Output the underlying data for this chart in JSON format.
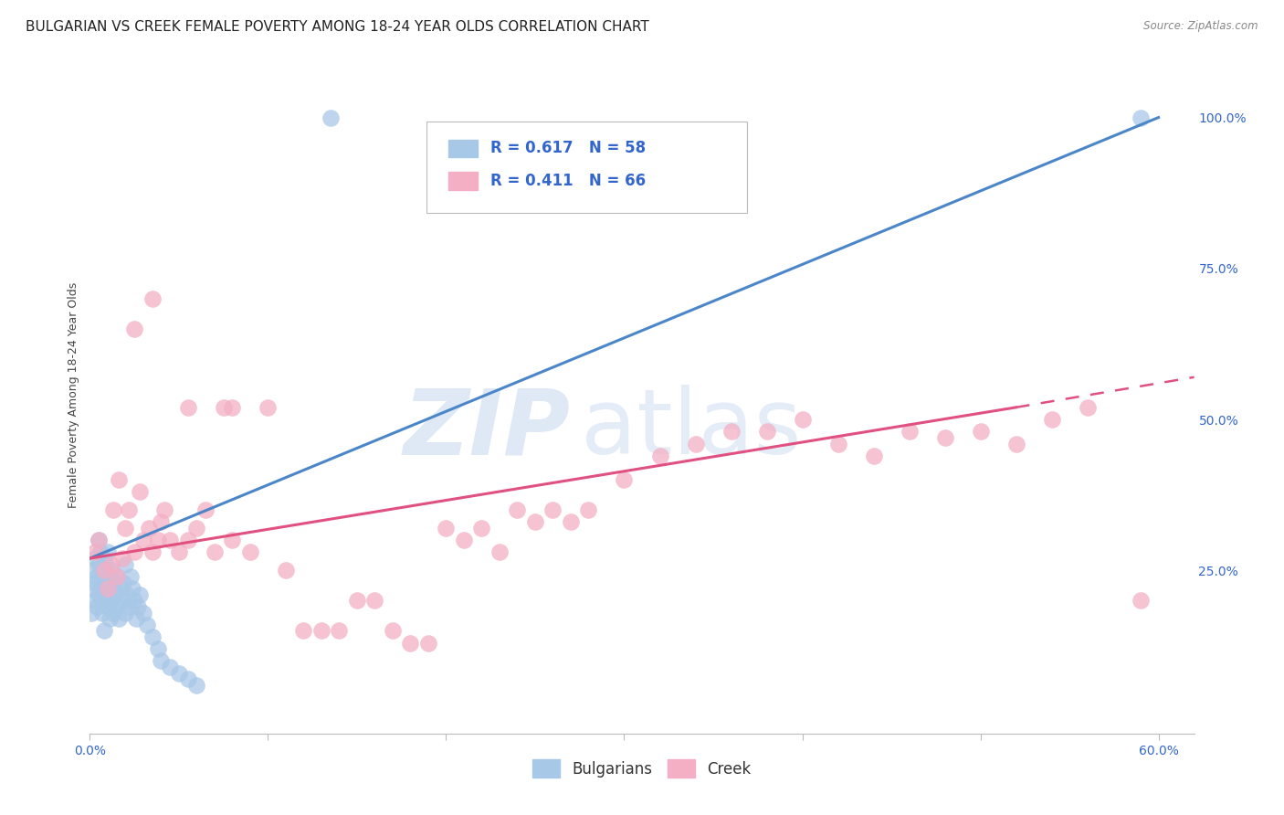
{
  "title": "BULGARIAN VS CREEK FEMALE POVERTY AMONG 18-24 YEAR OLDS CORRELATION CHART",
  "source": "Source: ZipAtlas.com",
  "ylabel": "Female Poverty Among 18-24 Year Olds",
  "xlim": [
    0.0,
    0.62
  ],
  "ylim": [
    -0.02,
    1.1
  ],
  "xticks": [
    0.0,
    0.1,
    0.2,
    0.3,
    0.4,
    0.5,
    0.6
  ],
  "xticklabels": [
    "0.0%",
    "",
    "",
    "",
    "",
    "",
    "60.0%"
  ],
  "yticks_right": [
    0.0,
    0.25,
    0.5,
    0.75,
    1.0
  ],
  "yticklabels_right": [
    "",
    "25.0%",
    "50.0%",
    "75.0%",
    "100.0%"
  ],
  "bulgarian_r": 0.617,
  "bulgarian_n": 58,
  "creek_r": 0.411,
  "creek_n": 66,
  "bulgarian_color": "#a8c8e8",
  "creek_color": "#f4afc4",
  "bulgarian_line_color": "#4a86c8",
  "creek_line_color": "#e05080",
  "watermark_zip": "ZIP",
  "watermark_atlas": "atlas",
  "background_color": "#ffffff",
  "grid_color": "#cccccc",
  "legend_text_color": "#3366cc",
  "title_fontsize": 11,
  "axis_label_fontsize": 9,
  "tick_fontsize": 10,
  "legend_fontsize": 12,
  "bulg_x": [
    0.001,
    0.002,
    0.002,
    0.003,
    0.003,
    0.003,
    0.004,
    0.004,
    0.005,
    0.005,
    0.005,
    0.006,
    0.006,
    0.007,
    0.007,
    0.007,
    0.008,
    0.008,
    0.008,
    0.009,
    0.009,
    0.01,
    0.01,
    0.01,
    0.011,
    0.011,
    0.012,
    0.012,
    0.013,
    0.013,
    0.014,
    0.015,
    0.015,
    0.016,
    0.017,
    0.018,
    0.019,
    0.02,
    0.02,
    0.021,
    0.022,
    0.023,
    0.024,
    0.025,
    0.026,
    0.027,
    0.028,
    0.03,
    0.032,
    0.035,
    0.038,
    0.04,
    0.045,
    0.05,
    0.055,
    0.06,
    0.135,
    0.59
  ],
  "bulg_y": [
    0.18,
    0.22,
    0.25,
    0.2,
    0.23,
    0.27,
    0.19,
    0.24,
    0.21,
    0.26,
    0.3,
    0.22,
    0.28,
    0.2,
    0.25,
    0.18,
    0.23,
    0.27,
    0.15,
    0.21,
    0.26,
    0.19,
    0.24,
    0.28,
    0.22,
    0.17,
    0.25,
    0.2,
    0.23,
    0.18,
    0.21,
    0.19,
    0.24,
    0.17,
    0.22,
    0.2,
    0.23,
    0.18,
    0.26,
    0.21,
    0.19,
    0.24,
    0.22,
    0.2,
    0.17,
    0.19,
    0.21,
    0.18,
    0.16,
    0.14,
    0.12,
    0.1,
    0.09,
    0.08,
    0.07,
    0.06,
    1.0,
    1.0
  ],
  "creek_x": [
    0.003,
    0.005,
    0.008,
    0.01,
    0.012,
    0.013,
    0.015,
    0.016,
    0.018,
    0.02,
    0.022,
    0.025,
    0.028,
    0.03,
    0.033,
    0.035,
    0.038,
    0.04,
    0.042,
    0.045,
    0.05,
    0.055,
    0.06,
    0.065,
    0.07,
    0.075,
    0.08,
    0.09,
    0.1,
    0.11,
    0.12,
    0.13,
    0.14,
    0.15,
    0.16,
    0.17,
    0.18,
    0.19,
    0.2,
    0.21,
    0.22,
    0.23,
    0.24,
    0.25,
    0.26,
    0.27,
    0.28,
    0.3,
    0.32,
    0.34,
    0.36,
    0.38,
    0.4,
    0.42,
    0.44,
    0.46,
    0.48,
    0.5,
    0.52,
    0.54,
    0.56,
    0.025,
    0.035,
    0.055,
    0.08,
    0.59
  ],
  "creek_y": [
    0.28,
    0.3,
    0.25,
    0.22,
    0.26,
    0.35,
    0.24,
    0.4,
    0.27,
    0.32,
    0.35,
    0.28,
    0.38,
    0.3,
    0.32,
    0.28,
    0.3,
    0.33,
    0.35,
    0.3,
    0.28,
    0.3,
    0.32,
    0.35,
    0.28,
    0.52,
    0.3,
    0.28,
    0.52,
    0.25,
    0.15,
    0.15,
    0.15,
    0.2,
    0.2,
    0.15,
    0.13,
    0.13,
    0.32,
    0.3,
    0.32,
    0.28,
    0.35,
    0.33,
    0.35,
    0.33,
    0.35,
    0.4,
    0.44,
    0.46,
    0.48,
    0.48,
    0.5,
    0.46,
    0.44,
    0.48,
    0.47,
    0.48,
    0.46,
    0.5,
    0.52,
    0.65,
    0.7,
    0.52,
    0.52,
    0.2
  ],
  "bulg_line": [
    0.0,
    0.6,
    0.27,
    1.0
  ],
  "creek_line_solid": [
    0.0,
    0.52,
    0.27,
    0.52
  ],
  "creek_line_dash": [
    0.52,
    0.62,
    0.52,
    0.57
  ]
}
